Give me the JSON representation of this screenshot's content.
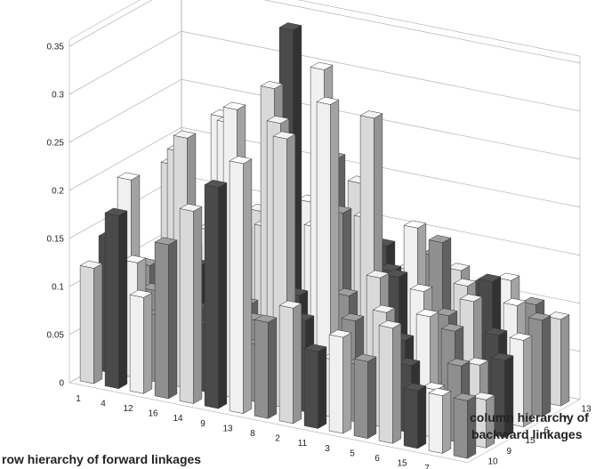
{
  "chart_data": {
    "type": "bar3d",
    "xlabel": "row hierarchy of forward linkages",
    "ylabel": "column hierarchy of backward linkages",
    "x_categories": [
      "1",
      "4",
      "12",
      "16",
      "14",
      "9",
      "13",
      "8",
      "2",
      "11",
      "3",
      "5",
      "6",
      "15",
      "7",
      "10"
    ],
    "y_categories": [
      "10",
      "9",
      "15",
      "6",
      "7",
      "13"
    ],
    "z_ticks": [
      "0",
      "0.05",
      "0.1",
      "0.15",
      "0.2",
      "0.25",
      "0.3",
      "0.35"
    ],
    "zlim": [
      0,
      0.35
    ],
    "grid": true,
    "values": [
      [
        0.12,
        0.18,
        0.1,
        0.16,
        0.2,
        0.23,
        0.26,
        0.1,
        0.12,
        0.08,
        0.1,
        0.08,
        0.12,
        0.06,
        0.06,
        0.06
      ],
      [
        0.14,
        0.12,
        0.07,
        0.26,
        0.07,
        0.3,
        0.06,
        0.28,
        0.06,
        0.06,
        0.06,
        0.12,
        0.07,
        0.05,
        0.08,
        0.05
      ],
      [
        0.19,
        0.08,
        0.23,
        0.07,
        0.27,
        0.07,
        0.28,
        0.08,
        0.31,
        0.09,
        0.14,
        0.08,
        0.11,
        0.1,
        0.07,
        0.08
      ],
      [
        0.09,
        0.2,
        0.1,
        0.26,
        0.07,
        0.3,
        0.09,
        0.33,
        0.1,
        0.29,
        0.13,
        0.12,
        0.1,
        0.12,
        0.09,
        0.09
      ],
      [
        0.08,
        0.1,
        0.09,
        0.13,
        0.14,
        0.35,
        0.15,
        0.17,
        0.17,
        0.12,
        0.17,
        0.16,
        0.12,
        0.13,
        0.11,
        0.1
      ],
      [
        0.1,
        0.11,
        0.12,
        0.14,
        0.17,
        0.16,
        0.21,
        0.19,
        0.13,
        0.11,
        0.13,
        0.12,
        0.11,
        0.12,
        0.1,
        0.09
      ]
    ],
    "shades": [
      "#d9d9d9",
      "#4a4a4a",
      "#f0f0f0",
      "#8f8f8f"
    ]
  }
}
